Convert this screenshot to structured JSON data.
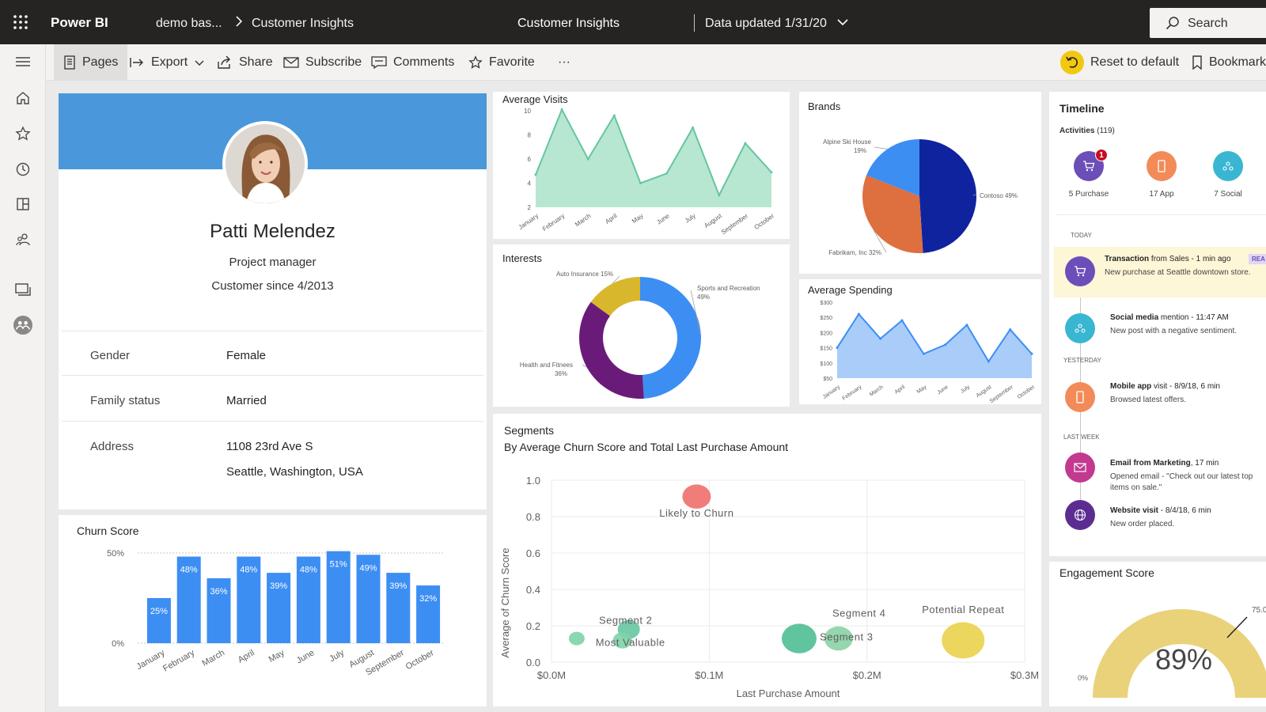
{
  "topbar": {
    "brand": "Power BI",
    "breadcrumb_workspace": "demo bas...",
    "breadcrumb_report": "Customer Insights",
    "title": "Customer Insights",
    "data_updated": "Data updated 1/31/20",
    "search_label": "Search"
  },
  "actionbar": {
    "pages": "Pages",
    "export": "Export",
    "share": "Share",
    "subscribe": "Subscribe",
    "comments": "Comments",
    "favorite": "Favorite",
    "more": "···",
    "reset": "Reset to default",
    "bookmarks": "Bookmark"
  },
  "leftnav": [
    "menu-icon",
    "home-icon",
    "star-icon",
    "clock-icon",
    "apps-icon",
    "people-icon",
    "workspaces-icon",
    "avatar-icon"
  ],
  "profile": {
    "name": "Patti Melendez",
    "role": "Project manager",
    "since": "Customer since 4/2013",
    "gender_label": "Gender",
    "gender": "Female",
    "family_label": "Family status",
    "family": "Married",
    "address_label": "Address",
    "address_line1": "1108 23rd Ave S",
    "address_line2": "Seattle, Washington, USA"
  },
  "churn": {
    "title": "Churn Score"
  },
  "avg_visits": {
    "title": "Average Visits"
  },
  "interests": {
    "title": "Interests"
  },
  "brands": {
    "title": "Brands"
  },
  "avg_spending": {
    "title": "Average Spending"
  },
  "segments": {
    "title": "Segments",
    "subtitle": "By Average Churn Score and Total Last Purchase Amount"
  },
  "timeline": {
    "title": "Timeline",
    "activities_label": "Activities",
    "activities_count": "(119)",
    "purchase": "5 Purchase",
    "app": "17 App",
    "social": "7 Social",
    "badge": "1",
    "today": "TODAY",
    "yesterday": "YESTERDAY",
    "last_week": "LAST WEEK",
    "items": [
      {
        "title": "Transaction",
        "meta": " from Sales - 1 min ago",
        "desc": "New purchase at Seattle downtown store.",
        "tag": "REA"
      },
      {
        "title": "Social media",
        "meta": " mention - 11:47 AM",
        "desc": "New post with a negative sentiment."
      },
      {
        "title": "Mobile app",
        "meta": " visit - 8/9/18, 6 min",
        "desc": "Browsed latest offers."
      },
      {
        "title": "Email from Marketing",
        "meta": ", 17 min",
        "desc": "Opened email - \"Check out our latest top items on sale.\""
      },
      {
        "title": "Website visit",
        "meta": " - 8/4/18, 6 min",
        "desc": "New order placed."
      }
    ]
  },
  "engagement": {
    "title": "Engagement Score",
    "value": "89%",
    "min": "0%",
    "target": "75.0"
  },
  "colors": {
    "accent_blue": "#4a98db",
    "bar_blue": "#3c8ef3",
    "teal": "#67c5a1",
    "gold": "#e9d27a"
  },
  "chart_data": [
    {
      "type": "bar",
      "id": "churn",
      "categories": [
        "January",
        "February",
        "March",
        "April",
        "May",
        "June",
        "July",
        "August",
        "September",
        "October"
      ],
      "values": [
        25,
        48,
        36,
        48,
        39,
        48,
        51,
        49,
        39,
        32
      ],
      "data_labels": [
        "25%",
        "48%",
        "36%",
        "48%",
        "39%",
        "48%",
        "51%",
        "49%",
        "39%",
        "32%"
      ],
      "y_ticks": [
        "50%",
        "0%"
      ],
      "ylim": [
        0,
        50
      ]
    },
    {
      "type": "area",
      "id": "avg_visits",
      "x": [
        "January",
        "February",
        "March",
        "April",
        "May",
        "June",
        "July",
        "August",
        "September",
        "October"
      ],
      "values": [
        4.7,
        10.1,
        6,
        9.6,
        4,
        4.8,
        8.6,
        3,
        7.3,
        4.9
      ],
      "y_ticks": [
        "10",
        "8",
        "6",
        "4",
        "2"
      ],
      "ylim": [
        2,
        10
      ]
    },
    {
      "type": "pie",
      "id": "interests",
      "donut": true,
      "slices": [
        {
          "name": "Sports and Recreation",
          "label": "Sports and Recreation",
          "pct": "49%",
          "value": 49,
          "color": "#3c8ef3"
        },
        {
          "name": "Health and Fitness",
          "label": "Health and Fitnees",
          "pct": "36%",
          "value": 36,
          "color": "#6a1b7a"
        },
        {
          "name": "Auto Insurance",
          "label": "Auto Insurance",
          "pct": "15%",
          "value": 15,
          "color": "#d9b72c"
        }
      ]
    },
    {
      "type": "pie",
      "id": "brands",
      "slices": [
        {
          "name": "Contoso",
          "label": "Contoso",
          "pct": "49%",
          "value": 49,
          "color": "#10239e"
        },
        {
          "name": "Fabrikam, Inc",
          "label": "Fabrikam, Inc",
          "pct": "32%",
          "value": 32,
          "color": "#de6f3f"
        },
        {
          "name": "Alpine Ski House",
          "label": "Alpine Ski House",
          "pct": "19%",
          "value": 19,
          "color": "#3c8ef3"
        }
      ]
    },
    {
      "type": "area",
      "id": "avg_spending",
      "x": [
        "January",
        "February",
        "March",
        "April",
        "May",
        "June",
        "July",
        "August",
        "September",
        "October"
      ],
      "values": [
        150,
        261,
        180,
        240,
        130,
        160,
        225,
        105,
        210,
        130
      ],
      "y_ticks": [
        "$300",
        "$250",
        "$200",
        "$150",
        "$100",
        "$50"
      ],
      "ylim": [
        50,
        300
      ]
    },
    {
      "type": "scatter",
      "id": "segments",
      "xlabel": "Last Purchase Amount",
      "ylabel": "Average of Churn Score",
      "x_ticks": [
        "$0.0M",
        "$0.1M",
        "$0.2M",
        "$0.3M"
      ],
      "xlim": [
        0,
        0.3
      ],
      "y_ticks": [
        "1.0",
        "0.8",
        "0.6",
        "0.4",
        "0.2",
        "0.0"
      ],
      "ylim": [
        0,
        1
      ],
      "points": [
        {
          "label": "Likely to Churn",
          "x": 0.092,
          "y": 0.91,
          "size": 18,
          "color": "#ef6f6c"
        },
        {
          "label": "Segment 2",
          "x": 0.049,
          "y": 0.18,
          "size": 14,
          "color": "#67c5a1"
        },
        {
          "label": "Most Valuable",
          "x": 0.045,
          "y": 0.12,
          "size": 12,
          "color": "#7dd3a8"
        },
        {
          "label": "",
          "x": 0.016,
          "y": 0.13,
          "size": 10,
          "color": "#7dd3a8"
        },
        {
          "label": "Segment 3",
          "x": 0.157,
          "y": 0.13,
          "size": 22,
          "color": "#4fbf95"
        },
        {
          "label": "Segment 4",
          "x": 0.182,
          "y": 0.13,
          "size": 18,
          "color": "#89d2a6"
        },
        {
          "label": "Potential Repeat",
          "x": 0.261,
          "y": 0.12,
          "size": 27,
          "color": "#ead24b"
        }
      ],
      "text_labels": [
        {
          "text": "Likely to Churn",
          "x": 0.092,
          "y": 0.8
        },
        {
          "text": "Segment 2",
          "x": 0.047,
          "y": 0.21
        },
        {
          "text": "Most Valuable",
          "x": 0.05,
          "y": 0.09
        },
        {
          "text": "Segment 4",
          "x": 0.195,
          "y": 0.25
        },
        {
          "text": "Segment 3",
          "x": 0.187,
          "y": 0.12
        },
        {
          "text": "Potential Repeat",
          "x": 0.261,
          "y": 0.27
        }
      ]
    }
  ]
}
